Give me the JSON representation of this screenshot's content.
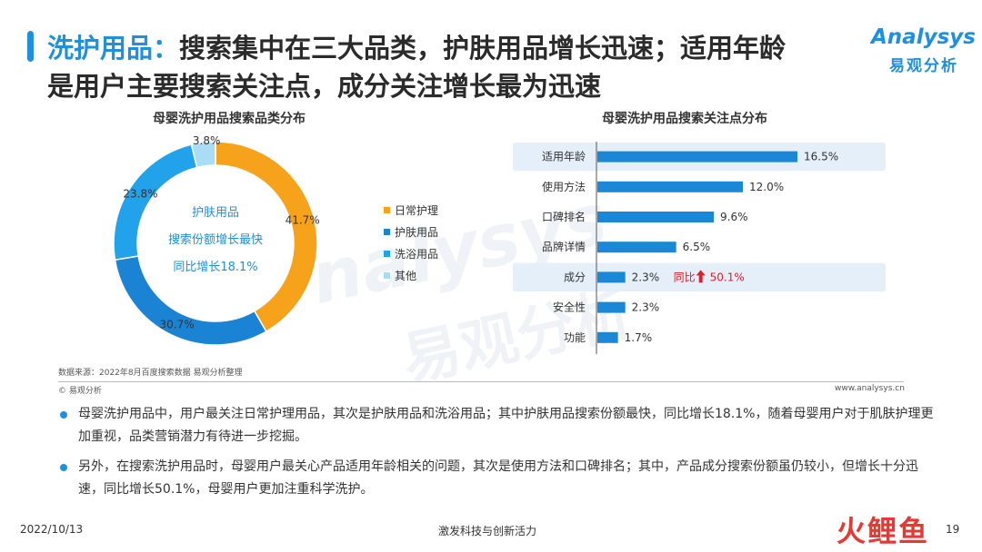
{
  "header": {
    "title_accent": "洗护用品：",
    "title_line1_rest": "搜索集中在三大品类，护肤用品增长迅速；适用年龄",
    "title_line2": "是用户主要搜索关注点，成分关注增长最为迅速"
  },
  "logo": {
    "en": "Analysys",
    "cn": "易观分析"
  },
  "watermark": {
    "en": "nalysys",
    "cn": "易观分析"
  },
  "colors": {
    "accent": "#1f8fe0",
    "orange": "#f7a21b",
    "dark_blue": "#1a83d4",
    "mid_blue": "#22a2ea",
    "light_blue": "#a9dcf5",
    "bar": "#1a88d6",
    "highlight_bg": "#e4eff9",
    "up_red": "#e0202a"
  },
  "chart_data": [
    {
      "type": "pie",
      "title": "母婴洗护用品搜索品类分布",
      "categories": [
        "日常护理",
        "护肤用品",
        "洗浴用品",
        "其他"
      ],
      "values": [
        41.7,
        30.7,
        23.8,
        3.8
      ],
      "value_labels": [
        "41.7%",
        "30.7%",
        "23.8%",
        "3.8%"
      ],
      "center_text": [
        "护肤用品",
        "搜索份额增长最快",
        "同比增长18.1%"
      ],
      "legend": "right"
    },
    {
      "type": "bar",
      "orientation": "horizontal",
      "title": "母婴洗护用品搜索关注点分布",
      "categories": [
        "适用年龄",
        "使用方法",
        "口碑排名",
        "品牌详情",
        "成分",
        "安全性",
        "功能"
      ],
      "values": [
        16.5,
        12.0,
        9.6,
        6.5,
        2.3,
        2.3,
        1.7
      ],
      "value_labels": [
        "16.5%",
        "12.0%",
        "9.6%",
        "6.5%",
        "2.3%",
        "2.3%",
        "1.7%"
      ],
      "highlighted": [
        "适用年龄",
        "成分"
      ],
      "annotation": {
        "category": "成分",
        "prefix": "同比",
        "arrow": "up",
        "value": "50.1%"
      },
      "xlim": [
        0,
        20
      ]
    }
  ],
  "source_note": "数据来源：2022年8月百度搜索数据 易观分析整理",
  "copyright": "© 易观分析",
  "website": "www.analysys.cn",
  "bullets": [
    "母婴洗护用品中，用户最关注日常护理用品，其次是护肤用品和洗浴用品；其中护肤用品搜索份额最快，同比增长18.1%，随着母婴用户对于肌肤护理更加重视，品类营销潜力有待进一步挖掘。",
    "另外，在搜索洗护用品时，母婴用户最关心产品适用年龄相关的问题，其次是使用方法和口碑排名；其中，产品成分搜索份额虽仍较小，但增长十分迅速，同比增长50.1%，母婴用户更加注重科学洗护。"
  ],
  "footer": {
    "date": "2022/10/13",
    "center": "激发科技与创新活力",
    "page": "19",
    "logo": "火鲤鱼"
  }
}
